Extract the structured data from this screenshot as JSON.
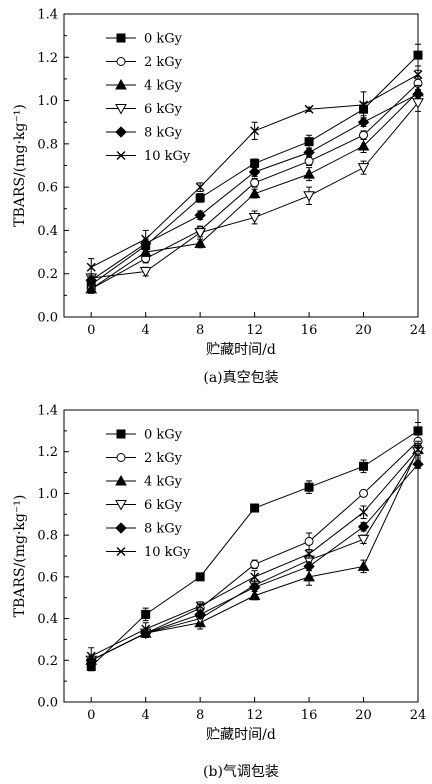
{
  "chart_data": [
    {
      "type": "line",
      "caption": "(a)真空包装",
      "xlabel": "贮藏时间/d",
      "ylabel": "TBARS/(mg·kg⁻¹)",
      "xlim": [
        -2,
        24
      ],
      "ylim": [
        0,
        1.4
      ],
      "x": [
        0,
        4,
        8,
        12,
        16,
        20,
        24
      ],
      "xticks": [
        "0",
        "4",
        "8",
        "12",
        "16",
        "20",
        "24"
      ],
      "yticks": [
        "0.0",
        "0.2",
        "0.4",
        "0.6",
        "0.8",
        "1.0",
        "1.2",
        "1.4"
      ],
      "legend_position": "top-left",
      "series": [
        {
          "name": "0 kGy",
          "marker": "square-filled",
          "values": [
            0.15,
            0.33,
            0.55,
            0.71,
            0.81,
            0.96,
            1.21
          ],
          "errors": [
            0.02,
            0.02,
            0.02,
            0.02,
            0.03,
            0.03,
            0.05
          ]
        },
        {
          "name": "2 kGy",
          "marker": "circle-open",
          "values": [
            0.13,
            0.27,
            0.4,
            0.62,
            0.72,
            0.84,
            1.08
          ],
          "errors": [
            0.02,
            0.02,
            0.02,
            0.02,
            0.02,
            0.02,
            0.03
          ]
        },
        {
          "name": "4 kGy",
          "marker": "triangle-up-filled",
          "values": [
            0.13,
            0.3,
            0.34,
            0.57,
            0.66,
            0.79,
            1.04
          ],
          "errors": [
            0.02,
            0.02,
            0.02,
            0.02,
            0.03,
            0.03,
            0.03
          ]
        },
        {
          "name": "6 kGy",
          "marker": "triangle-down-open",
          "values": [
            0.18,
            0.21,
            0.39,
            0.46,
            0.56,
            0.69,
            0.99
          ],
          "errors": [
            0.02,
            0.02,
            0.02,
            0.03,
            0.04,
            0.03,
            0.04
          ]
        },
        {
          "name": "8 kGy",
          "marker": "diamond-filled",
          "values": [
            0.17,
            0.34,
            0.47,
            0.67,
            0.76,
            0.9,
            1.03
          ],
          "errors": [
            0.02,
            0.02,
            0.02,
            0.02,
            0.02,
            0.02,
            0.02
          ]
        },
        {
          "name": "10 kGy",
          "marker": "x-cross",
          "values": [
            0.23,
            0.36,
            0.6,
            0.86,
            0.96,
            0.98,
            1.12
          ],
          "errors": [
            0.04,
            0.04,
            0.02,
            0.04,
            0.01,
            0.06,
            0.02
          ]
        }
      ]
    },
    {
      "type": "line",
      "caption": "(b)气调包装",
      "xlabel": "贮藏时间/d",
      "ylabel": "TBARS/(mg·kg⁻¹)",
      "xlim": [
        -2,
        24
      ],
      "ylim": [
        0,
        1.4
      ],
      "x": [
        0,
        4,
        8,
        12,
        16,
        20,
        24
      ],
      "xticks": [
        "0",
        "4",
        "8",
        "12",
        "16",
        "20",
        "24"
      ],
      "yticks": [
        "0.0",
        "0.2",
        "0.4",
        "0.6",
        "0.8",
        "1.0",
        "1.2",
        "1.4"
      ],
      "legend_position": "top-left",
      "series": [
        {
          "name": "0 kGy",
          "marker": "square-filled",
          "values": [
            0.17,
            0.42,
            0.6,
            0.93,
            1.03,
            1.13,
            1.3
          ],
          "errors": [
            0.02,
            0.03,
            0.01,
            0.01,
            0.03,
            0.03,
            0.04
          ]
        },
        {
          "name": "2 kGy",
          "marker": "circle-open",
          "values": [
            0.2,
            0.33,
            0.45,
            0.66,
            0.77,
            1.0,
            1.25
          ],
          "errors": [
            0.02,
            0.02,
            0.02,
            0.02,
            0.04,
            0.01,
            0.03
          ]
        },
        {
          "name": "4 kGy",
          "marker": "triangle-up-filled",
          "values": [
            0.2,
            0.33,
            0.38,
            0.51,
            0.6,
            0.65,
            1.21
          ],
          "errors": [
            0.02,
            0.02,
            0.03,
            0.02,
            0.04,
            0.03,
            0.04
          ]
        },
        {
          "name": "6 kGy",
          "marker": "triangle-down-open",
          "values": [
            0.2,
            0.33,
            0.4,
            0.56,
            0.68,
            0.78,
            1.2
          ],
          "errors": [
            0.02,
            0.02,
            0.02,
            0.02,
            0.02,
            0.02,
            0.03
          ]
        },
        {
          "name": "8 kGy",
          "marker": "diamond-filled",
          "values": [
            0.2,
            0.33,
            0.42,
            0.55,
            0.65,
            0.84,
            1.14
          ],
          "errors": [
            0.02,
            0.02,
            0.02,
            0.02,
            0.02,
            0.02,
            0.02
          ]
        },
        {
          "name": "10 kGy",
          "marker": "x-cross",
          "values": [
            0.22,
            0.35,
            0.46,
            0.6,
            0.71,
            0.91,
            1.21
          ],
          "errors": [
            0.04,
            0.03,
            0.02,
            0.03,
            0.02,
            0.03,
            0.03
          ]
        }
      ]
    }
  ]
}
